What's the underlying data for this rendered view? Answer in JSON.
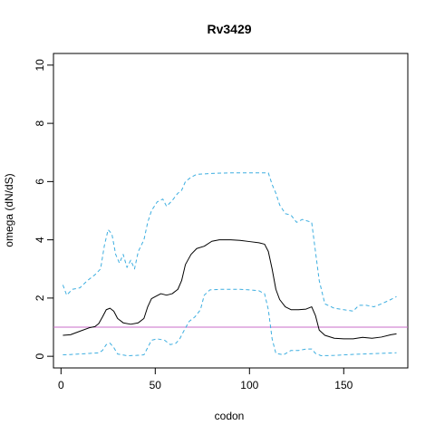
{
  "chart_data": {
    "type": "line",
    "title": "Rv3429",
    "xlabel": "codon",
    "ylabel": "omega (dN/dS)",
    "xlim": [
      -4,
      184
    ],
    "ylim": [
      -0.4,
      10.4
    ],
    "xticks": [
      0,
      50,
      100,
      150
    ],
    "yticks": [
      0,
      2,
      4,
      6,
      8,
      10
    ],
    "grid": false,
    "reference_line": {
      "y": 1,
      "color": "#c86ec8"
    },
    "series": [
      {
        "style": "solid",
        "color": "#000000",
        "points": [
          [
            1,
            0.72
          ],
          [
            5,
            0.74
          ],
          [
            10,
            0.86
          ],
          [
            15,
            0.98
          ],
          [
            18,
            1.02
          ],
          [
            20,
            1.12
          ],
          [
            22,
            1.35
          ],
          [
            24,
            1.6
          ],
          [
            26,
            1.65
          ],
          [
            28,
            1.55
          ],
          [
            30,
            1.3
          ],
          [
            33,
            1.15
          ],
          [
            37,
            1.1
          ],
          [
            41,
            1.15
          ],
          [
            44,
            1.3
          ],
          [
            46,
            1.7
          ],
          [
            48,
            1.98
          ],
          [
            50,
            2.05
          ],
          [
            53,
            2.15
          ],
          [
            56,
            2.1
          ],
          [
            59,
            2.15
          ],
          [
            62,
            2.3
          ],
          [
            64,
            2.6
          ],
          [
            66,
            3.15
          ],
          [
            69,
            3.5
          ],
          [
            72,
            3.7
          ],
          [
            76,
            3.78
          ],
          [
            80,
            3.95
          ],
          [
            84,
            4.0
          ],
          [
            90,
            4.0
          ],
          [
            95,
            3.98
          ],
          [
            100,
            3.94
          ],
          [
            105,
            3.9
          ],
          [
            108,
            3.85
          ],
          [
            110,
            3.6
          ],
          [
            112,
            3.0
          ],
          [
            114,
            2.3
          ],
          [
            116,
            1.95
          ],
          [
            119,
            1.7
          ],
          [
            122,
            1.6
          ],
          [
            126,
            1.6
          ],
          [
            130,
            1.62
          ],
          [
            133,
            1.7
          ],
          [
            135,
            1.4
          ],
          [
            137,
            0.9
          ],
          [
            140,
            0.72
          ],
          [
            145,
            0.62
          ],
          [
            150,
            0.6
          ],
          [
            155,
            0.6
          ],
          [
            160,
            0.65
          ],
          [
            165,
            0.62
          ],
          [
            170,
            0.66
          ],
          [
            175,
            0.74
          ],
          [
            178,
            0.77
          ]
        ]
      },
      {
        "style": "dashed",
        "color": "#3daee0",
        "points": [
          [
            1,
            2.45
          ],
          [
            3,
            2.1
          ],
          [
            6,
            2.3
          ],
          [
            10,
            2.35
          ],
          [
            14,
            2.6
          ],
          [
            18,
            2.8
          ],
          [
            21,
            3.0
          ],
          [
            23,
            3.8
          ],
          [
            25,
            4.35
          ],
          [
            27,
            4.2
          ],
          [
            29,
            3.5
          ],
          [
            31,
            3.2
          ],
          [
            33,
            3.5
          ],
          [
            35,
            3.05
          ],
          [
            37,
            3.3
          ],
          [
            39,
            3.0
          ],
          [
            41,
            3.6
          ],
          [
            44,
            4.0
          ],
          [
            46,
            4.6
          ],
          [
            48,
            5.0
          ],
          [
            51,
            5.3
          ],
          [
            54,
            5.4
          ],
          [
            56,
            5.15
          ],
          [
            59,
            5.35
          ],
          [
            62,
            5.6
          ],
          [
            64,
            5.7
          ],
          [
            66,
            6.0
          ],
          [
            69,
            6.15
          ],
          [
            72,
            6.25
          ],
          [
            80,
            6.28
          ],
          [
            90,
            6.3
          ],
          [
            100,
            6.3
          ],
          [
            106,
            6.3
          ],
          [
            110,
            6.3
          ],
          [
            112,
            5.9
          ],
          [
            114,
            5.6
          ],
          [
            116,
            5.2
          ],
          [
            119,
            4.9
          ],
          [
            122,
            4.85
          ],
          [
            125,
            4.6
          ],
          [
            128,
            4.7
          ],
          [
            133,
            4.6
          ],
          [
            135,
            3.6
          ],
          [
            137,
            2.6
          ],
          [
            140,
            1.8
          ],
          [
            145,
            1.65
          ],
          [
            150,
            1.6
          ],
          [
            155,
            1.55
          ],
          [
            158,
            1.75
          ],
          [
            162,
            1.75
          ],
          [
            166,
            1.7
          ],
          [
            170,
            1.8
          ],
          [
            175,
            1.95
          ],
          [
            178,
            2.05
          ]
        ]
      },
      {
        "style": "dashed",
        "color": "#3daee0",
        "points": [
          [
            1,
            0.05
          ],
          [
            5,
            0.06
          ],
          [
            10,
            0.08
          ],
          [
            15,
            0.1
          ],
          [
            20,
            0.12
          ],
          [
            22,
            0.2
          ],
          [
            24,
            0.4
          ],
          [
            26,
            0.45
          ],
          [
            28,
            0.3
          ],
          [
            30,
            0.08
          ],
          [
            35,
            0.02
          ],
          [
            40,
            0.03
          ],
          [
            44,
            0.05
          ],
          [
            46,
            0.3
          ],
          [
            48,
            0.55
          ],
          [
            51,
            0.6
          ],
          [
            55,
            0.55
          ],
          [
            58,
            0.4
          ],
          [
            61,
            0.45
          ],
          [
            63,
            0.6
          ],
          [
            65,
            0.85
          ],
          [
            68,
            1.2
          ],
          [
            71,
            1.35
          ],
          [
            74,
            1.6
          ],
          [
            76,
            2.1
          ],
          [
            79,
            2.28
          ],
          [
            85,
            2.3
          ],
          [
            95,
            2.3
          ],
          [
            100,
            2.28
          ],
          [
            105,
            2.25
          ],
          [
            108,
            2.15
          ],
          [
            110,
            1.6
          ],
          [
            112,
            0.6
          ],
          [
            114,
            0.1
          ],
          [
            118,
            0.05
          ],
          [
            122,
            0.2
          ],
          [
            126,
            0.2
          ],
          [
            130,
            0.25
          ],
          [
            133,
            0.25
          ],
          [
            135,
            0.1
          ],
          [
            138,
            0.02
          ],
          [
            145,
            0.03
          ],
          [
            150,
            0.05
          ],
          [
            160,
            0.08
          ],
          [
            170,
            0.1
          ],
          [
            178,
            0.12
          ]
        ]
      }
    ]
  }
}
